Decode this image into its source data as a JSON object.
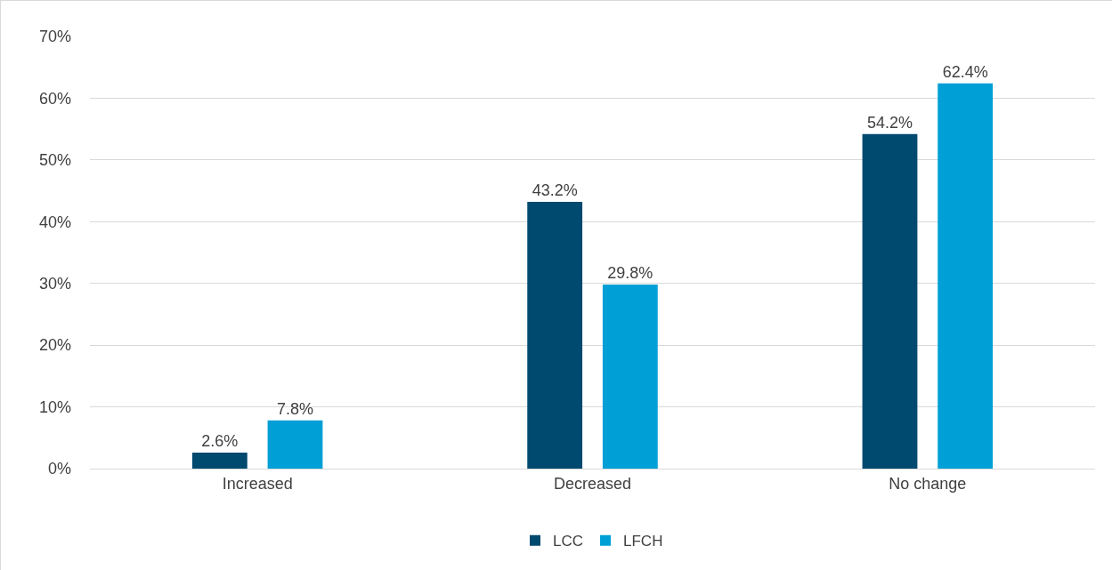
{
  "chart_data": {
    "type": "bar",
    "categories": [
      "Increased",
      "Decreased",
      "No change"
    ],
    "series": [
      {
        "name": "LCC",
        "color": "#00496f",
        "values": [
          2.6,
          43.2,
          54.2
        ],
        "value_labels": [
          "2.6%",
          "43.2%",
          "54.2%"
        ]
      },
      {
        "name": "LFCH",
        "color": "#009fd6",
        "values": [
          7.8,
          29.8,
          62.4
        ],
        "value_labels": [
          "7.8%",
          "29.8%",
          "62.4%"
        ]
      }
    ],
    "ylim": [
      0,
      70
    ],
    "yticks": [
      {
        "value": 0,
        "label": "0%"
      },
      {
        "value": 10,
        "label": "10%"
      },
      {
        "value": 20,
        "label": "20%"
      },
      {
        "value": 30,
        "label": "30%"
      },
      {
        "value": 40,
        "label": "40%"
      },
      {
        "value": 50,
        "label": "50%"
      },
      {
        "value": 60,
        "label": "60%"
      },
      {
        "value": 70,
        "label": "70%"
      }
    ],
    "grid": "y",
    "legend": "bottom"
  }
}
